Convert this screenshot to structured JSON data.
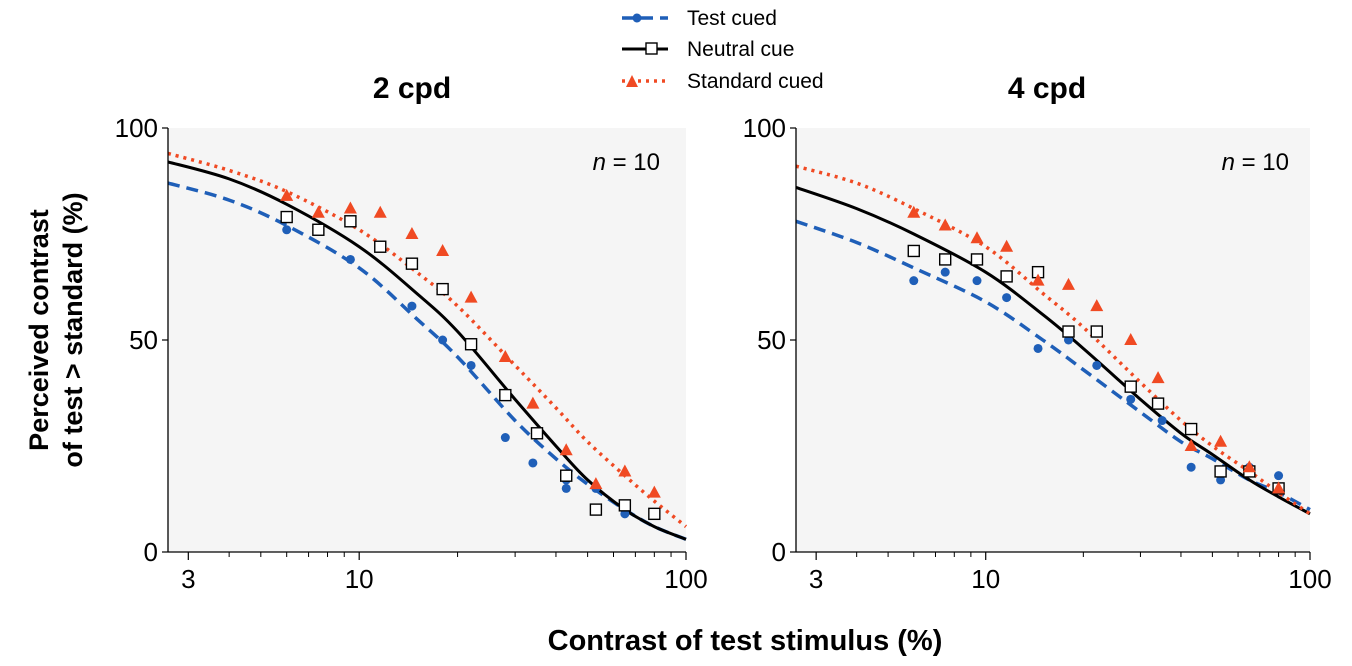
{
  "figure": {
    "ylabel_line1": "Perceived contrast",
    "ylabel_line2": "of test > standard (%)",
    "xlabel": "Contrast of test stimulus (%)"
  },
  "legend": {
    "placement": "top-center",
    "items": [
      {
        "label": "Test cued",
        "color": "#1f5fb8",
        "marker": "circle",
        "line": "dashed"
      },
      {
        "label": "Neutral cue",
        "color": "#000000",
        "marker": "open-square",
        "line": "solid"
      },
      {
        "label": "Standard cued",
        "color": "#f04a23",
        "marker": "triangle",
        "line": "dotted"
      }
    ]
  },
  "chart_data": [
    {
      "type": "scatter",
      "title": "2 cpd",
      "annotation_italic": "n",
      "annotation_rest": " = 10",
      "x_scale": "log",
      "xlim": [
        2.6,
        100
      ],
      "ylim": [
        0,
        100
      ],
      "x_ticks": [
        {
          "value": 3,
          "label": "3"
        },
        {
          "value": 10,
          "label": "10"
        },
        {
          "value": 100,
          "label": "100"
        }
      ],
      "y_ticks": [
        {
          "value": 0,
          "label": "0"
        },
        {
          "value": 50,
          "label": "50"
        },
        {
          "value": 100,
          "label": "100"
        }
      ],
      "grid": false,
      "series": [
        {
          "name": "Test cued",
          "color": "#1f5fb8",
          "marker": "circle",
          "line": "dashed",
          "points": [
            [
              6,
              76
            ],
            [
              9.4,
              69
            ],
            [
              14.5,
              58
            ],
            [
              18,
              50
            ],
            [
              22,
              44
            ],
            [
              28,
              27
            ],
            [
              34,
              21
            ],
            [
              43,
              15
            ],
            [
              43,
              17
            ],
            [
              53,
              15
            ],
            [
              65,
              9
            ],
            [
              80,
              9
            ]
          ],
          "fit": [
            [
              2.6,
              87
            ],
            [
              4,
              83
            ],
            [
              6,
              77
            ],
            [
              10,
              67
            ],
            [
              15,
              55
            ],
            [
              20,
              46
            ],
            [
              30,
              31
            ],
            [
              40,
              22
            ],
            [
              50,
              16
            ],
            [
              65,
              10
            ],
            [
              80,
              6
            ],
            [
              100,
              3
            ]
          ]
        },
        {
          "name": "Neutral cue",
          "color": "#000000",
          "marker": "open-square",
          "line": "solid",
          "points": [
            [
              6,
              79
            ],
            [
              7.5,
              76
            ],
            [
              9.4,
              78
            ],
            [
              11.6,
              72
            ],
            [
              14.5,
              68
            ],
            [
              18,
              62
            ],
            [
              22,
              49
            ],
            [
              28,
              37
            ],
            [
              35,
              28
            ],
            [
              43,
              18
            ],
            [
              53,
              10
            ],
            [
              65,
              11
            ],
            [
              80,
              9
            ]
          ],
          "fit": [
            [
              2.6,
              92
            ],
            [
              4,
              88
            ],
            [
              6,
              82
            ],
            [
              10,
              72
            ],
            [
              15,
              61
            ],
            [
              20,
              52
            ],
            [
              30,
              36
            ],
            [
              40,
              25
            ],
            [
              50,
              17
            ],
            [
              65,
              10
            ],
            [
              80,
              6
            ],
            [
              100,
              3
            ]
          ]
        },
        {
          "name": "Standard cued",
          "color": "#f04a23",
          "marker": "triangle",
          "line": "dotted",
          "points": [
            [
              6,
              84
            ],
            [
              7.5,
              80
            ],
            [
              9.4,
              81
            ],
            [
              11.6,
              80
            ],
            [
              14.5,
              75
            ],
            [
              18,
              71
            ],
            [
              22,
              60
            ],
            [
              28,
              46
            ],
            [
              34,
              35
            ],
            [
              43,
              24
            ],
            [
              53,
              16
            ],
            [
              65,
              19
            ],
            [
              80,
              14
            ]
          ],
          "fit": [
            [
              2.6,
              94
            ],
            [
              4,
              90
            ],
            [
              6,
              85
            ],
            [
              10,
              76
            ],
            [
              15,
              66
            ],
            [
              20,
              58
            ],
            [
              30,
              44
            ],
            [
              40,
              34
            ],
            [
              50,
              26
            ],
            [
              65,
              18
            ],
            [
              80,
              12
            ],
            [
              100,
              6
            ]
          ]
        }
      ]
    },
    {
      "type": "scatter",
      "title": "4 cpd",
      "annotation_italic": "n",
      "annotation_rest": " = 10",
      "x_scale": "log",
      "xlim": [
        2.6,
        100
      ],
      "ylim": [
        0,
        100
      ],
      "x_ticks": [
        {
          "value": 3,
          "label": "3"
        },
        {
          "value": 10,
          "label": "10"
        },
        {
          "value": 100,
          "label": "100"
        }
      ],
      "y_ticks": [
        {
          "value": 0,
          "label": "0"
        },
        {
          "value": 50,
          "label": "50"
        },
        {
          "value": 100,
          "label": "100"
        }
      ],
      "grid": false,
      "series": [
        {
          "name": "Test cued",
          "color": "#1f5fb8",
          "marker": "circle",
          "line": "dashed",
          "points": [
            [
              6,
              64
            ],
            [
              7.5,
              66
            ],
            [
              9.4,
              64
            ],
            [
              11.6,
              60
            ],
            [
              14.5,
              48
            ],
            [
              18,
              50
            ],
            [
              22,
              44
            ],
            [
              28,
              36
            ],
            [
              35,
              31
            ],
            [
              43,
              20
            ],
            [
              53,
              17
            ],
            [
              65,
              20
            ],
            [
              80,
              18
            ]
          ],
          "fit": [
            [
              2.6,
              78
            ],
            [
              4,
              73
            ],
            [
              6,
              67
            ],
            [
              10,
              59
            ],
            [
              15,
              50
            ],
            [
              20,
              43
            ],
            [
              30,
              33
            ],
            [
              40,
              26
            ],
            [
              50,
              22
            ],
            [
              65,
              17
            ],
            [
              80,
              14
            ],
            [
              100,
              10
            ]
          ]
        },
        {
          "name": "Neutral cue",
          "color": "#000000",
          "marker": "open-square",
          "line": "solid",
          "points": [
            [
              6,
              71
            ],
            [
              7.5,
              69
            ],
            [
              9.4,
              69
            ],
            [
              11.6,
              65
            ],
            [
              14.5,
              66
            ],
            [
              18,
              52
            ],
            [
              22,
              52
            ],
            [
              28,
              39
            ],
            [
              34,
              35
            ],
            [
              43,
              29
            ],
            [
              53,
              19
            ],
            [
              65,
              19
            ],
            [
              80,
              15
            ]
          ],
          "fit": [
            [
              2.6,
              86
            ],
            [
              4,
              81
            ],
            [
              6,
              75
            ],
            [
              10,
              66
            ],
            [
              15,
              56
            ],
            [
              20,
              48
            ],
            [
              30,
              36
            ],
            [
              40,
              28
            ],
            [
              50,
              23
            ],
            [
              65,
              17
            ],
            [
              80,
              13
            ],
            [
              100,
              9
            ]
          ]
        },
        {
          "name": "Standard cued",
          "color": "#f04a23",
          "marker": "triangle",
          "line": "dotted",
          "points": [
            [
              6,
              80
            ],
            [
              7.5,
              77
            ],
            [
              9.4,
              74
            ],
            [
              11.6,
              72
            ],
            [
              14.5,
              64
            ],
            [
              18,
              63
            ],
            [
              22,
              58
            ],
            [
              28,
              50
            ],
            [
              34,
              41
            ],
            [
              43,
              25
            ],
            [
              53,
              26
            ],
            [
              65,
              20
            ],
            [
              80,
              15
            ]
          ],
          "fit": [
            [
              2.6,
              91
            ],
            [
              4,
              87
            ],
            [
              6,
              81
            ],
            [
              10,
              72
            ],
            [
              15,
              61
            ],
            [
              20,
              53
            ],
            [
              30,
              40
            ],
            [
              40,
              31
            ],
            [
              50,
              25
            ],
            [
              65,
              19
            ],
            [
              80,
              14
            ],
            [
              100,
              9
            ]
          ]
        }
      ]
    }
  ]
}
